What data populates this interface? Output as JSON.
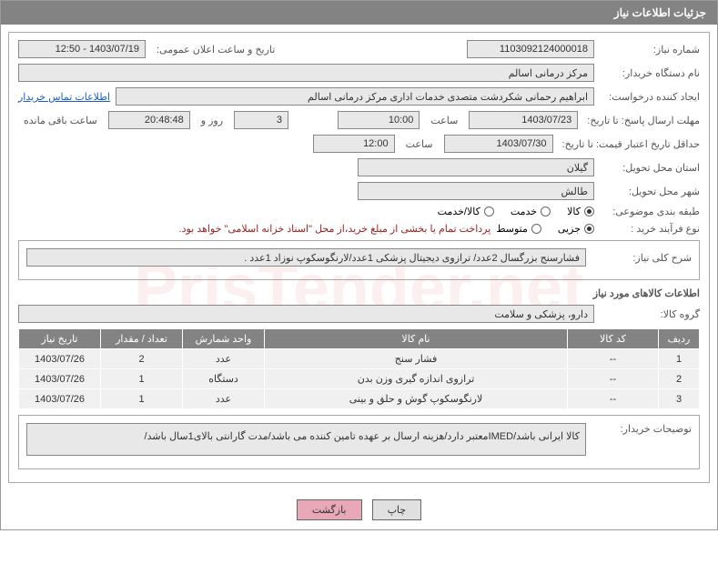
{
  "header": {
    "title": "جزئیات اطلاعات نیاز"
  },
  "fields": {
    "request_no_label": "شماره نیاز:",
    "request_no": "1103092124000018",
    "announce_label": "تاریخ و ساعت اعلان عمومی:",
    "announce_value": "1403/07/19 - 12:50",
    "buyer_org_label": "نام دستگاه خریدار:",
    "buyer_org": "مرکز درمانی اسالم",
    "creator_label": "ایجاد کننده درخواست:",
    "creator": "ابراهیم رحمانی شکردشت متصدی خدمات اداری مرکز درمانی اسالم",
    "contact_link": "اطلاعات تماس خریدار",
    "deadline_label": "مهلت ارسال پاسخ: تا تاریخ:",
    "deadline_date": "1403/07/23",
    "hour_label": "ساعت",
    "deadline_hour": "10:00",
    "days_remain": "3",
    "days_label": "روز و",
    "time_remain": "20:48:48",
    "remain_label": "ساعت باقی مانده",
    "validity_label": "حداقل تاریخ اعتبار قیمت: تا تاریخ:",
    "validity_date": "1403/07/30",
    "validity_hour": "12:00",
    "province_label": "استان محل تحویل:",
    "province": "گیلان",
    "city_label": "شهر محل تحویل:",
    "city": "طالش",
    "category_label": "طبقه بندی موضوعی:",
    "cat_opts": {
      "a": "کالا",
      "b": "خدمت",
      "c": "کالا/خدمت"
    },
    "process_label": "نوع فرآیند خرید :",
    "proc_opts": {
      "a": "جزیی",
      "b": "متوسط"
    },
    "process_note": "پرداخت تمام یا بخشی از مبلغ خرید،از محل \"اسناد خزانه اسلامی\" خواهد بود.",
    "summary_label": "شرح کلی نیاز:",
    "summary": "فشارسنج بزرگسال 2عدد/ ترازوی دیجیتال پزشکی 1عدد/لارنگوسکوپ نوزاد 1عدد .",
    "goods_section": "اطلاعات کالاهای مورد نیاز",
    "group_label": "گروه کالا:",
    "group": "دارو، پزشکی و سلامت",
    "desc_label": "توضیحات خریدار:",
    "desc": "کالا ایرانی باشد/IMEDمعتبر دارد/هزینه ارسال بر عهده تامین کننده می باشد/مدت گارانتی بالای1سال باشد/"
  },
  "table": {
    "headers": {
      "row": "ردیف",
      "code": "کد کالا",
      "name": "نام کالا",
      "unit": "واحد شمارش",
      "qty": "تعداد / مقدار",
      "date": "تاریخ نیاز"
    },
    "rows": [
      {
        "row": "1",
        "code": "--",
        "name": "فشار سنج",
        "unit": "عدد",
        "qty": "2",
        "date": "1403/07/26"
      },
      {
        "row": "2",
        "code": "--",
        "name": "ترازوی اندازه گیری وزن بدن",
        "unit": "دستگاه",
        "qty": "1",
        "date": "1403/07/26"
      },
      {
        "row": "3",
        "code": "--",
        "name": "لارنگوسکوپ گوش و حلق و بینی",
        "unit": "عدد",
        "qty": "1",
        "date": "1403/07/26"
      }
    ]
  },
  "buttons": {
    "print": "چاپ",
    "back": "بازگشت"
  }
}
